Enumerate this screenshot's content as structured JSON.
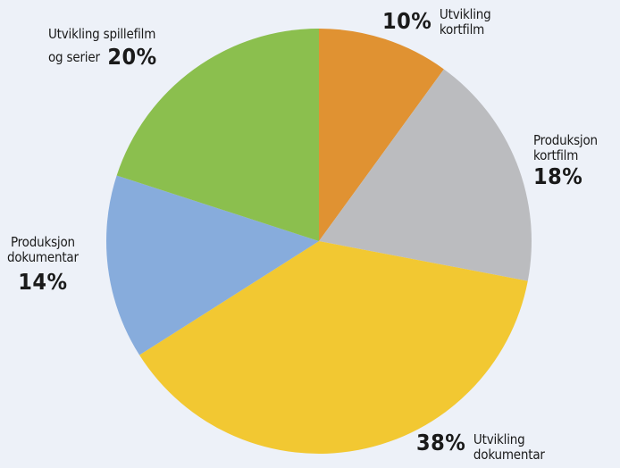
{
  "chart_data": {
    "type": "pie",
    "slices": [
      {
        "label_lines": [
          "Utvikling",
          "kortfilm"
        ],
        "value": 10,
        "value_label": "10%",
        "color": "#e09232"
      },
      {
        "label_lines": [
          "Produksjon",
          "kortfilm"
        ],
        "value": 18,
        "value_label": "18%",
        "color": "#bbbcbf"
      },
      {
        "label_lines": [
          "Utvikling",
          "dokumentar"
        ],
        "value": 38,
        "value_label": "38%",
        "color": "#f2c832"
      },
      {
        "label_lines": [
          "Produksjon",
          "dokumentar"
        ],
        "value": 14,
        "value_label": "14%",
        "color": "#87acdc"
      },
      {
        "label_lines": [
          "Utvikling spillefilm",
          "og serier"
        ],
        "value": 20,
        "value_label": "20%",
        "color": "#8bbf4e"
      }
    ],
    "start_angle": "12 o'clock",
    "direction": "clockwise",
    "legend": "none (labels placed beside slices)"
  },
  "background_color": "#edf1f8"
}
